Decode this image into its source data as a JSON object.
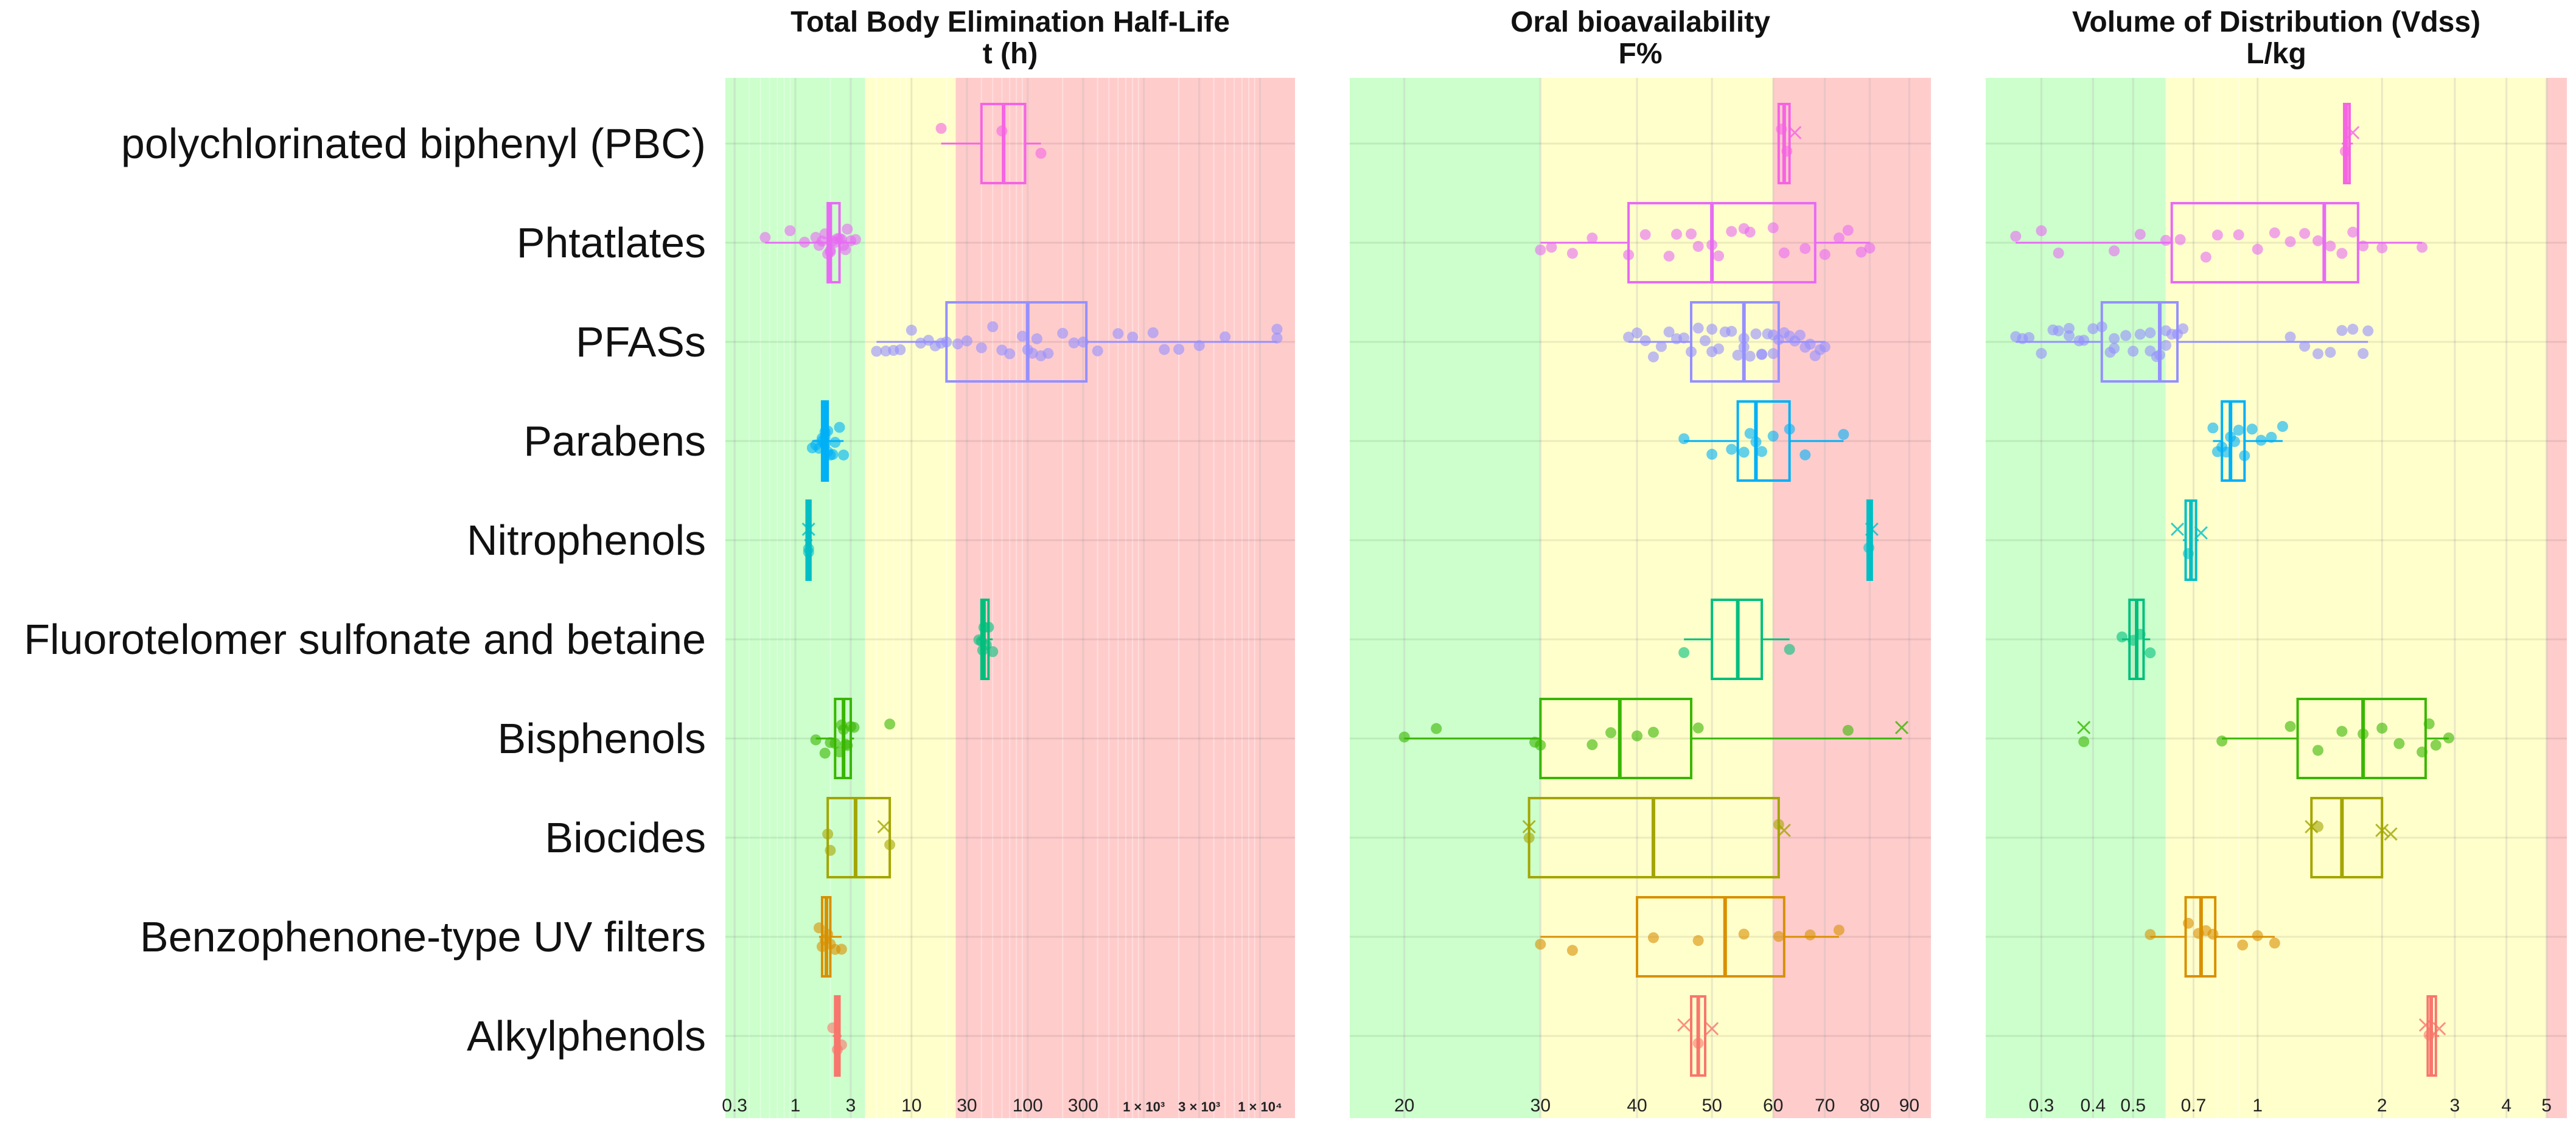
{
  "chart_data": {
    "type": "box",
    "categories": [
      "polychlorinated biphenyl (PBC)",
      "Phtatlates",
      "PFASs",
      "Parabens",
      "Nitrophenols",
      "Fluorotelomer sulfonate and betaine",
      "Bisphenols",
      "Biocides",
      "Benzophenone-type UV filters",
      "Alkylphenols"
    ],
    "colors": [
      "#F564E3",
      "#E76BF3",
      "#9590FF",
      "#00B0F6",
      "#00BFC4",
      "#00BF7D",
      "#39B600",
      "#A3A500",
      "#D89000",
      "#F8766D"
    ],
    "zone_colors": {
      "green": "#CCFFCC",
      "yellow": "#FFFFCC",
      "red": "#FFCCCC"
    },
    "panels": [
      {
        "title": [
          "Total Body Elimination Half-Life",
          "t (h)"
        ],
        "scale": "log",
        "xlim": [
          0.25,
          20000
        ],
        "ticks": [
          0.3,
          1,
          3,
          10,
          30,
          100,
          300,
          1000,
          3000,
          10000
        ],
        "tick_labels": [
          "0.3",
          "1",
          "3",
          "10",
          "30",
          "100",
          "300",
          "1 × 10³",
          "3 × 10³",
          "1 × 10⁴"
        ],
        "zones": [
          {
            "color": "green",
            "from": 0.25,
            "to": 4
          },
          {
            "color": "yellow",
            "from": 4,
            "to": 24
          },
          {
            "color": "red",
            "from": 24,
            "to": 20000
          }
        ],
        "boxes": [
          {
            "q1": 40,
            "median": 62,
            "q3": 95,
            "wmin": 18,
            "wmax": 130,
            "points": [
              18,
              130,
              60
            ],
            "x_marks": []
          },
          {
            "q1": 1.9,
            "median": 2.0,
            "q3": 2.4,
            "wmin": 0.55,
            "wmax": 3.3,
            "points": [
              0.55,
              0.9,
              1.2,
              1.5,
              1.7,
              1.8,
              1.9,
              2.0,
              2.0,
              2.1,
              2.2,
              2.3,
              2.5,
              2.7,
              3.0,
              3.3,
              1.6,
              2.4,
              2.6,
              2.8
            ],
            "x_marks": []
          },
          {
            "q1": 20,
            "median": 100,
            "q3": 320,
            "wmin": 5,
            "wmax": 14000,
            "points": [
              5,
              6,
              7,
              8,
              10,
              12,
              14,
              16,
              18,
              20,
              25,
              30,
              40,
              50,
              60,
              70,
              90,
              100,
              110,
              120,
              130,
              150,
              200,
              250,
              300,
              400,
              600,
              800,
              1200,
              1500,
              2000,
              3000,
              5000,
              14000,
              14000
            ],
            "x_marks": []
          },
          {
            "q1": 1.7,
            "median": 1.8,
            "q3": 1.9,
            "wmin": 1.4,
            "wmax": 2.6,
            "points": [
              1.4,
              1.5,
              1.6,
              1.7,
              1.7,
              1.8,
              1.8,
              1.8,
              1.9,
              1.9,
              2.0,
              2.1,
              2.2,
              2.4,
              2.6
            ],
            "x_marks": []
          },
          {
            "q1": 1.25,
            "median": 1.3,
            "q3": 1.35,
            "wmin": 1.2,
            "wmax": 1.4,
            "points": [
              1.3,
              1.3
            ],
            "x_marks": [
              1.3
            ]
          },
          {
            "q1": 40,
            "median": 42,
            "q3": 46,
            "wmin": 38,
            "wmax": 50,
            "points": [
              38,
              40,
              41,
              42,
              44,
              46,
              50
            ],
            "x_marks": []
          },
          {
            "q1": 2.2,
            "median": 2.6,
            "q3": 3.0,
            "wmin": 1.5,
            "wmax": 3.2,
            "points": [
              1.5,
              1.8,
              2.0,
              2.2,
              2.4,
              2.5,
              2.6,
              2.7,
              2.8,
              3.0,
              3.2,
              6.5
            ],
            "x_marks": []
          },
          {
            "q1": 1.9,
            "median": 3.3,
            "q3": 6.5,
            "wmin": 1.9,
            "wmax": 6.5,
            "points": [
              1.9,
              2.0,
              6.5
            ],
            "x_marks": [
              5.8
            ]
          },
          {
            "q1": 1.7,
            "median": 1.85,
            "q3": 2.0,
            "wmin": 1.6,
            "wmax": 2.5,
            "points": [
              1.6,
              1.7,
              1.8,
              1.9,
              2.0,
              2.2,
              2.5
            ],
            "x_marks": []
          },
          {
            "q1": 2.2,
            "median": 2.3,
            "q3": 2.4,
            "wmin": 2.1,
            "wmax": 2.5,
            "points": [
              2.1,
              2.3,
              2.5
            ],
            "x_marks": []
          }
        ]
      },
      {
        "title": [
          "Oral bioavailability",
          "F%"
        ],
        "scale": "log",
        "xlim": [
          17,
          96
        ],
        "ticks": [
          20,
          30,
          40,
          50,
          60,
          70,
          80,
          90
        ],
        "tick_labels": [
          "20",
          "30",
          "40",
          "50",
          "60",
          "70",
          "80",
          "90"
        ],
        "zones": [
          {
            "color": "green",
            "from": 17,
            "to": 30
          },
          {
            "color": "yellow",
            "from": 30,
            "to": 60
          },
          {
            "color": "red",
            "from": 60,
            "to": 96
          }
        ],
        "boxes": [
          {
            "q1": 61,
            "median": 62,
            "q3": 63,
            "wmin": 61,
            "wmax": 63,
            "points": [
              61.5,
              62.5
            ],
            "x_marks": [
              64
            ]
          },
          {
            "q1": 39,
            "median": 50,
            "q3": 68,
            "wmin": 30,
            "wmax": 80,
            "points": [
              30,
              31,
              33,
              35,
              39,
              41,
              44,
              47,
              48,
              50,
              51,
              53,
              56,
              60,
              62,
              66,
              70,
              73,
              75,
              78,
              80,
              45,
              55
            ],
            "x_marks": []
          },
          {
            "q1": 47,
            "median": 55,
            "q3": 61,
            "wmin": 39,
            "wmax": 70,
            "points": [
              39,
              40,
              41,
              42,
              43,
              44,
              45,
              46,
              47,
              48,
              49,
              50,
              51,
              52,
              53,
              54,
              55,
              56,
              57,
              58,
              59,
              60,
              61,
              62,
              63,
              64,
              65,
              66,
              67,
              68,
              69,
              70,
              50,
              55,
              58,
              60
            ],
            "x_marks": []
          },
          {
            "q1": 54,
            "median": 57,
            "q3": 63,
            "wmin": 46,
            "wmax": 74,
            "points": [
              46,
              50,
              53,
              55,
              56,
              57,
              58,
              60,
              63,
              66,
              74
            ],
            "x_marks": []
          },
          {
            "q1": 79.5,
            "median": 80,
            "q3": 80.5,
            "wmin": 79.5,
            "wmax": 80.5,
            "points": [
              79.8
            ],
            "x_marks": [
              80.5
            ]
          },
          {
            "q1": 50,
            "median": 54,
            "q3": 58,
            "wmin": 46,
            "wmax": 63,
            "points": [
              46,
              63
            ],
            "x_marks": []
          },
          {
            "q1": 30,
            "median": 38,
            "q3": 47,
            "wmin": 20,
            "wmax": 88,
            "points": [
              20,
              22,
              29.5,
              30,
              35,
              37,
              40,
              42,
              48,
              75
            ],
            "x_marks": [
              88
            ]
          },
          {
            "q1": 29,
            "median": 42,
            "q3": 61,
            "wmin": 29,
            "wmax": 61,
            "points": [
              29,
              61
            ],
            "x_marks": [
              29,
              62
            ]
          },
          {
            "q1": 40,
            "median": 52,
            "q3": 62,
            "wmin": 30,
            "wmax": 73,
            "points": [
              30,
              33,
              42,
              48,
              55,
              61,
              67,
              73
            ],
            "x_marks": []
          },
          {
            "q1": 47,
            "median": 48,
            "q3": 49,
            "wmin": 47,
            "wmax": 49,
            "points": [
              48
            ],
            "x_marks": [
              46,
              50
            ]
          }
        ]
      },
      {
        "title": [
          "Volume of Distribution (Vdss)",
          "L/kg"
        ],
        "scale": "log",
        "xlim": [
          0.22,
          5.6
        ],
        "ticks": [
          0.3,
          0.4,
          0.5,
          0.7,
          1,
          2,
          3,
          4,
          5
        ],
        "tick_labels": [
          "0.3",
          "0.4",
          "0.5",
          "0.7",
          "1",
          "2",
          "3",
          "4",
          "5"
        ],
        "zones": [
          {
            "color": "green",
            "from": 0.22,
            "to": 0.6
          },
          {
            "color": "yellow",
            "from": 0.6,
            "to": 5
          },
          {
            "color": "red",
            "from": 5,
            "to": 5.6
          }
        ],
        "boxes": [
          {
            "q1": 1.62,
            "median": 1.64,
            "q3": 1.67,
            "wmin": 1.6,
            "wmax": 1.7,
            "points": [
              1.63
            ],
            "x_marks": [
              1.7
            ]
          },
          {
            "q1": 0.62,
            "median": 1.45,
            "q3": 1.75,
            "wmin": 0.26,
            "wmax": 2.5,
            "points": [
              0.26,
              0.3,
              0.33,
              0.45,
              0.52,
              0.6,
              0.65,
              0.8,
              0.9,
              1.0,
              1.1,
              1.3,
              1.4,
              1.5,
              1.6,
              1.7,
              1.8,
              2.0,
              2.5,
              0.75,
              1.2
            ],
            "x_marks": []
          },
          {
            "q1": 0.42,
            "median": 0.58,
            "q3": 0.64,
            "wmin": 0.26,
            "wmax": 1.85,
            "points": [
              0.26,
              0.27,
              0.28,
              0.3,
              0.32,
              0.33,
              0.35,
              0.37,
              0.38,
              0.4,
              0.42,
              0.44,
              0.45,
              0.48,
              0.5,
              0.52,
              0.55,
              0.57,
              0.58,
              0.6,
              0.62,
              0.64,
              0.66,
              1.2,
              1.3,
              1.4,
              1.5,
              1.6,
              1.7,
              1.8,
              1.85,
              0.35,
              0.45,
              0.55,
              0.6
            ],
            "x_marks": []
          },
          {
            "q1": 0.82,
            "median": 0.86,
            "q3": 0.93,
            "wmin": 0.78,
            "wmax": 1.15,
            "points": [
              0.78,
              0.8,
              0.82,
              0.84,
              0.86,
              0.88,
              0.9,
              0.93,
              0.97,
              1.02,
              1.08,
              1.15
            ],
            "x_marks": []
          },
          {
            "q1": 0.67,
            "median": 0.69,
            "q3": 0.71,
            "wmin": 0.66,
            "wmax": 0.72,
            "points": [
              0.68
            ],
            "x_marks": [
              0.64,
              0.73
            ]
          },
          {
            "q1": 0.49,
            "median": 0.51,
            "q3": 0.53,
            "wmin": 0.47,
            "wmax": 0.55,
            "points": [
              0.47,
              0.5,
              0.52,
              0.55
            ],
            "x_marks": []
          },
          {
            "q1": 1.25,
            "median": 1.8,
            "q3": 2.55,
            "wmin": 0.82,
            "wmax": 2.9,
            "points": [
              0.38,
              0.82,
              1.2,
              1.4,
              1.6,
              1.8,
              2.0,
              2.2,
              2.5,
              2.6,
              2.7,
              2.9
            ],
            "x_marks": [
              0.38
            ]
          },
          {
            "q1": 1.35,
            "median": 1.6,
            "q3": 2.0,
            "wmin": 1.35,
            "wmax": 2.0,
            "points": [
              1.4
            ],
            "x_marks": [
              1.35,
              2.0,
              2.1
            ]
          },
          {
            "q1": 0.67,
            "median": 0.73,
            "q3": 0.79,
            "wmin": 0.55,
            "wmax": 1.1,
            "points": [
              0.55,
              0.68,
              0.72,
              0.75,
              0.78,
              0.92,
              1.0,
              1.1
            ],
            "x_marks": []
          },
          {
            "q1": 2.58,
            "median": 2.63,
            "q3": 2.7,
            "wmin": 2.55,
            "wmax": 2.75,
            "points": [
              2.6
            ],
            "x_marks": [
              2.55,
              2.75
            ]
          }
        ]
      }
    ]
  }
}
